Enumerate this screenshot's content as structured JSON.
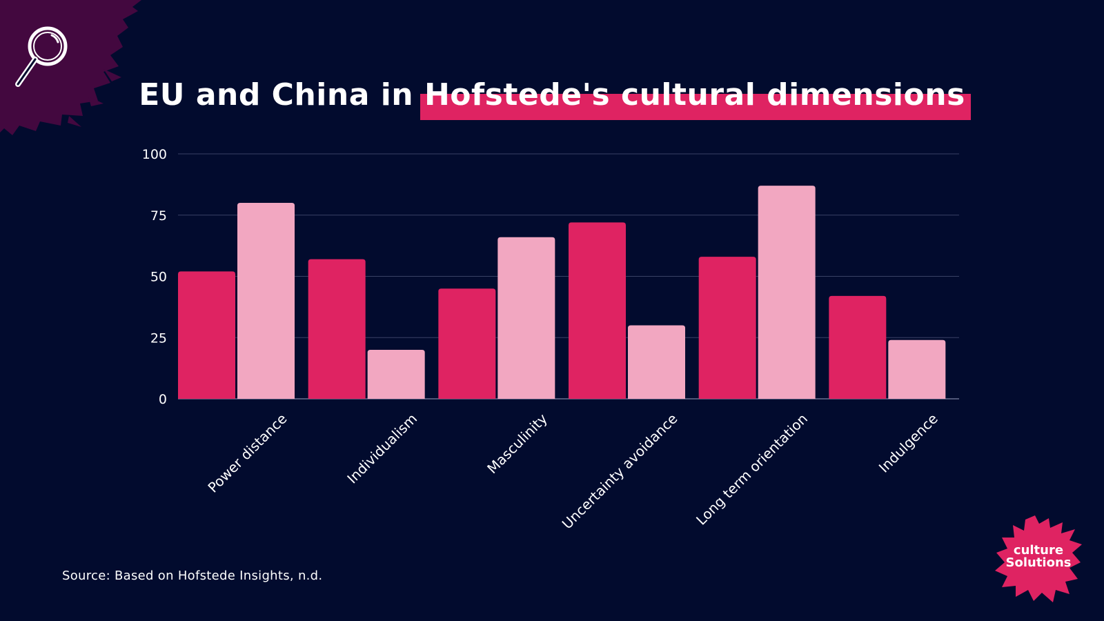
{
  "title": {
    "part1": "EU and China in",
    "part2": "Hofstede's cultural dimensions"
  },
  "source": "Source: Based on Hofstede Insights, n.d.",
  "logo": {
    "line1": "culture",
    "line2": "Solutions"
  },
  "colors": {
    "background": "#020b2e",
    "accent": "#df2362",
    "series_eu": "#df2362",
    "series_china": "#f2a7c1",
    "splash": "#43083f",
    "grid": "#3a4266",
    "text": "#ffffff"
  },
  "icons": [
    "magnifier-icon",
    "paint-splash",
    "culture-solutions-logo"
  ],
  "chart_data": {
    "type": "bar",
    "title": "EU and China in Hofstede's cultural dimensions",
    "categories": [
      "Power distance",
      "Individualism",
      "Masculinity",
      "Uncertainty avoidance",
      "Long term orientation",
      "Indulgence"
    ],
    "series": [
      {
        "values": [
          52,
          57,
          45,
          72,
          58,
          42
        ]
      },
      {
        "values": [
          80,
          20,
          66,
          30,
          87,
          24
        ]
      }
    ],
    "yticks": [
      0,
      25,
      50,
      75,
      100
    ],
    "ylim": [
      0,
      100
    ],
    "grid": true,
    "legend": "none"
  }
}
